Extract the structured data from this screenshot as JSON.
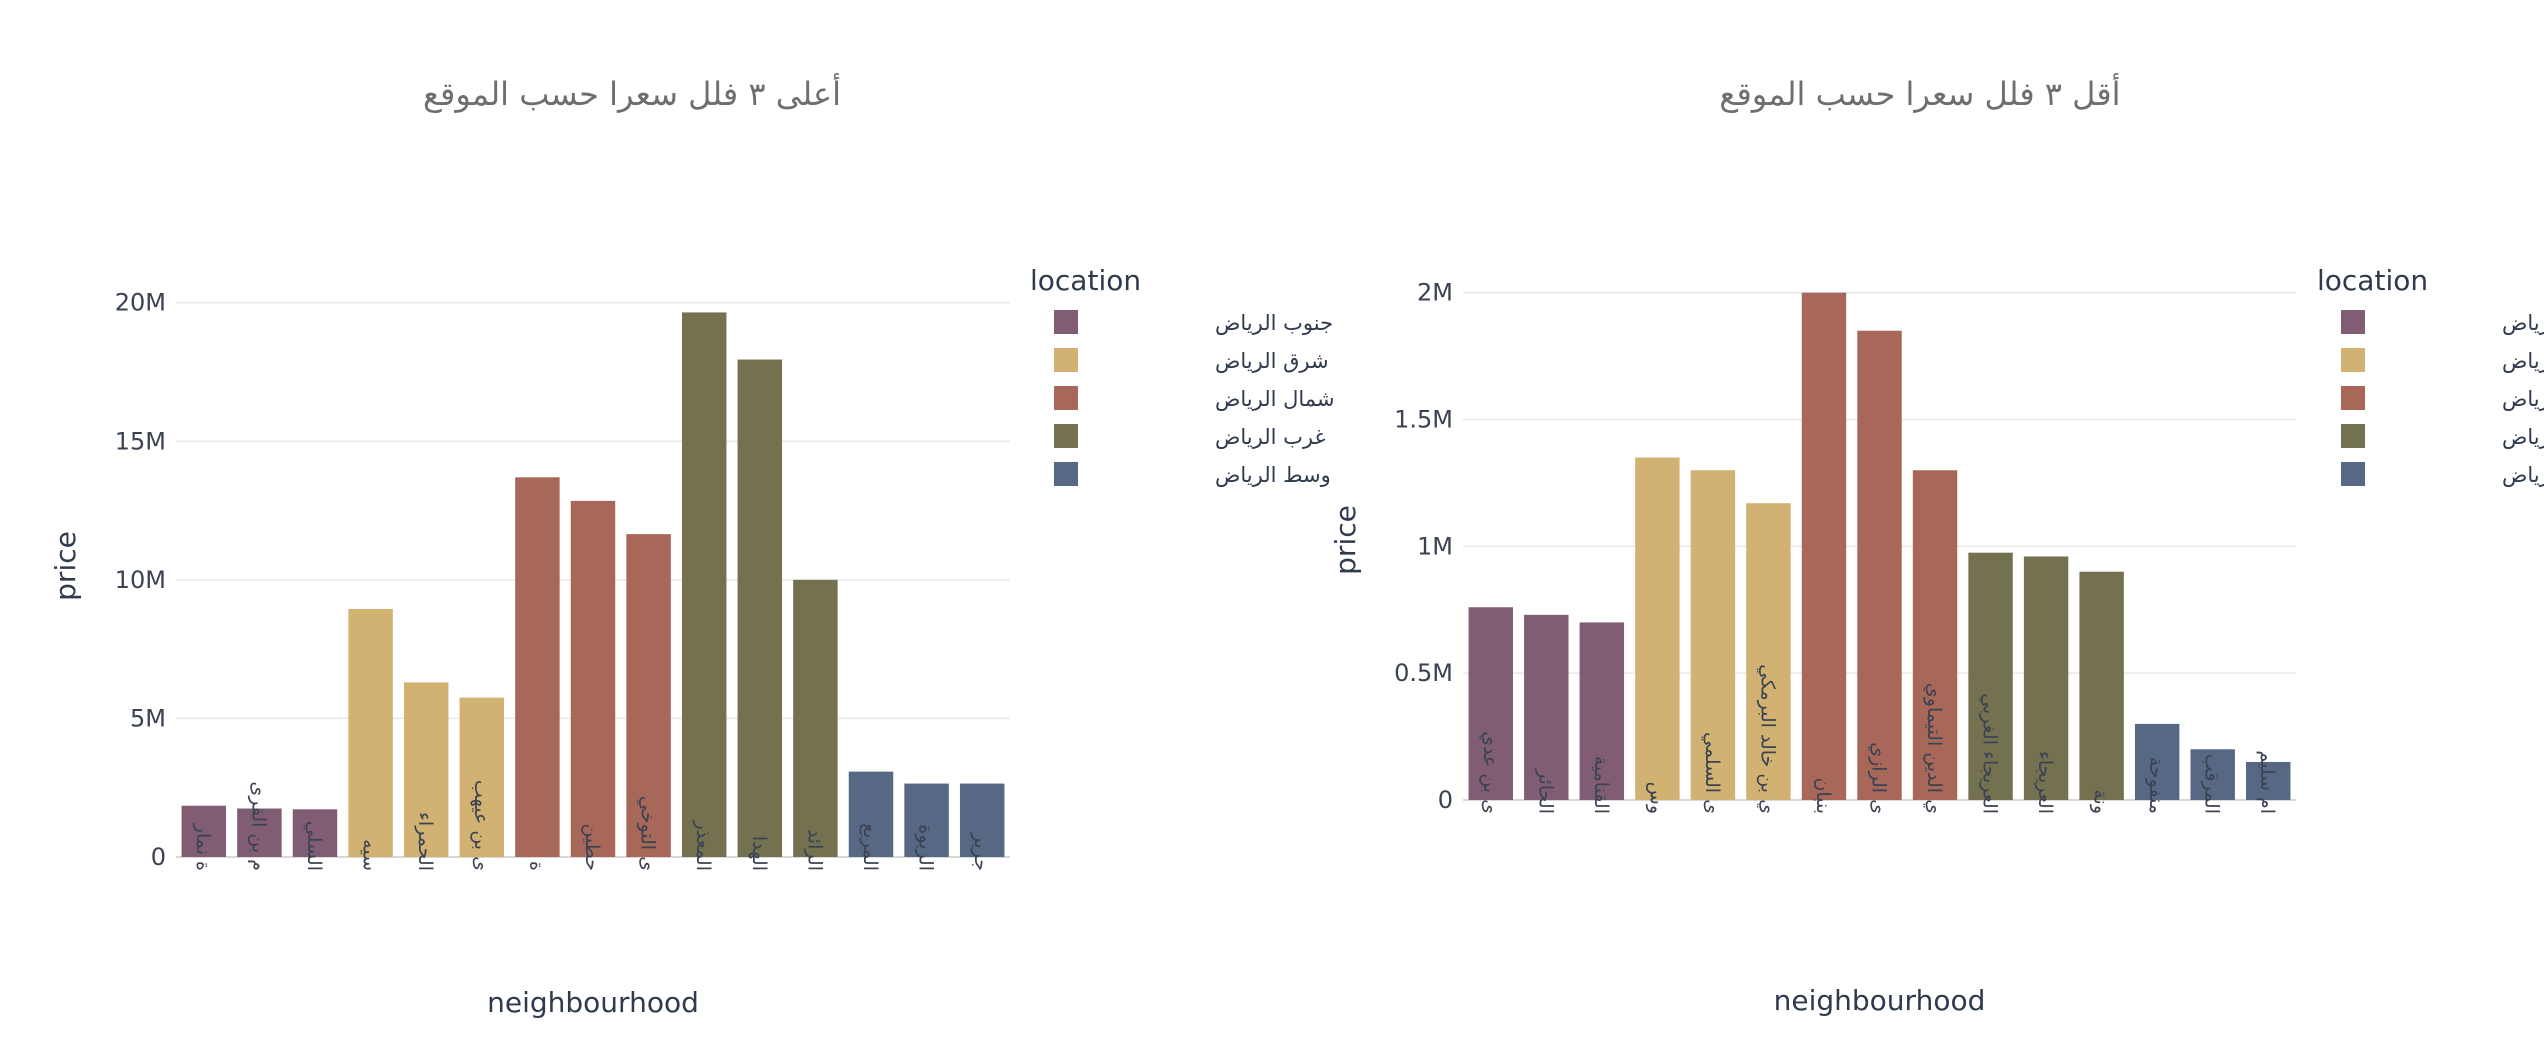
{
  "chart_data": [
    {
      "type": "bar",
      "title": "أعلى ٣ فلل سعرا حسب الموقع",
      "xlabel": "neighbourhood",
      "ylabel": "price",
      "ylim": [
        0,
        21000000
      ],
      "yticks": [
        {
          "value": 0,
          "label": "0"
        },
        {
          "value": 5000000,
          "label": "5M"
        },
        {
          "value": 10000000,
          "label": "10M"
        },
        {
          "value": 15000000,
          "label": "15M"
        },
        {
          "value": 20000000,
          "label": "20M"
        }
      ],
      "grid": true,
      "legend": {
        "title": "location",
        "placement": "right"
      },
      "categories": [
        "ة نمار",
        "م بن القرى",
        "السلي",
        "سيه",
        "الحمراء",
        "ى بن عيهب",
        "ة",
        "حطين",
        "ى التوخي",
        "المعذر",
        "الهدا",
        "الرائد",
        "المربع",
        "الربوة",
        "جرير"
      ],
      "values": [
        1850000,
        1750000,
        1720000,
        8950000,
        6300000,
        5750000,
        13700000,
        12850000,
        11650000,
        19650000,
        17950000,
        10000000,
        3080000,
        2650000,
        2650000
      ],
      "location": [
        "جنوب الرياض",
        "جنوب الرياض",
        "جنوب الرياض",
        "شرق الرياض",
        "شرق الرياض",
        "شرق الرياض",
        "شمال الرياض",
        "شمال الرياض",
        "شمال الرياض",
        "غرب الرياض",
        "غرب الرياض",
        "غرب الرياض",
        "وسط الرياض",
        "وسط الرياض",
        "وسط الرياض"
      ]
    },
    {
      "type": "bar",
      "title": "أقل ٣ فلل سعرا حسب الموقع",
      "xlabel": "neighbourhood",
      "ylabel": "price",
      "ylim": [
        0,
        2050000
      ],
      "yticks": [
        {
          "value": 0,
          "label": "0"
        },
        {
          "value": 500000,
          "label": "0.5M"
        },
        {
          "value": 1000000,
          "label": "1M"
        },
        {
          "value": 1500000,
          "label": "1.5M"
        },
        {
          "value": 2000000,
          "label": "2M"
        }
      ],
      "grid": true,
      "legend": {
        "title": "location",
        "placement": "right"
      },
      "categories": [
        "ى بن عدي",
        "الحائر",
        "القنامية",
        "وس",
        "ى السلمي",
        "ي بن خالد البرمكي",
        "بنبان",
        "ى الرازي",
        "ي الدين التيماوي",
        "العريجاء الغربي",
        "العريجاء",
        "ونة",
        "منفوحة",
        "المرقب",
        "ام سليم"
      ],
      "values": [
        760000,
        730000,
        700000,
        1350000,
        1300000,
        1170000,
        2000000,
        1850000,
        1300000,
        975000,
        960000,
        900000,
        300000,
        200000,
        150000
      ],
      "location": [
        "جنوب الرياض",
        "جنوب الرياض",
        "جنوب الرياض",
        "شرق الرياض",
        "شرق الرياض",
        "شرق الرياض",
        "شمال الرياض",
        "شمال الرياض",
        "شمال الرياض",
        "غرب الرياض",
        "غرب الرياض",
        "غرب الرياض",
        "وسط الرياض",
        "وسط الرياض",
        "وسط الرياض"
      ]
    }
  ],
  "legend_items": [
    {
      "name": "جنوب الرياض",
      "color": "#805d73"
    },
    {
      "name": "شرق الرياض",
      "color": "#d1b273"
    },
    {
      "name": "شمال الرياض",
      "color": "#a76759"
    },
    {
      "name": "غرب الرياض",
      "color": "#737150"
    },
    {
      "name": "وسط الرياض",
      "color": "#566883"
    }
  ]
}
